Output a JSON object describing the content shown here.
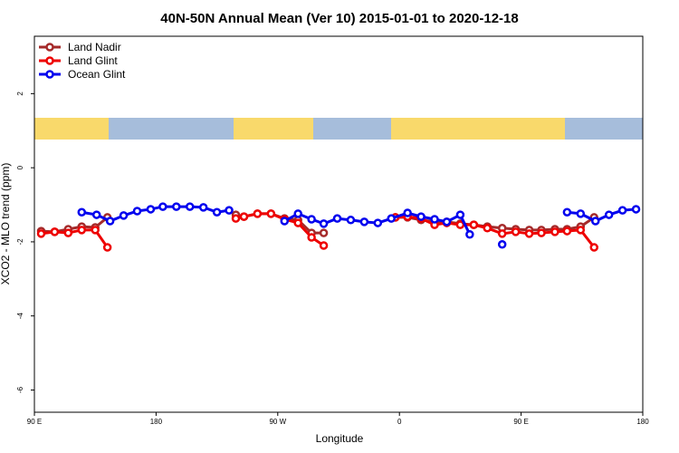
{
  "chart_data": {
    "type": "line",
    "title": "40N-50N Annual Mean (Ver 10)   2015-01-01 to 2020-12-18",
    "xlabel": "Longitude",
    "ylabel": "XCO2 - MLO trend (ppm)",
    "xlim": [
      90,
      540
    ],
    "ylim": [
      -6.6,
      3.55
    ],
    "xticks": [
      {
        "value": 90,
        "label": "90 E"
      },
      180,
      {
        "value": 270,
        "label": "90 W"
      },
      {
        "value": 360,
        "label": "0"
      },
      {
        "value": 450,
        "label": "90 E"
      },
      {
        "value": 540,
        "label": "180"
      }
    ],
    "yticks": [
      -6,
      -4,
      -2,
      0,
      2
    ],
    "legend": "top-left",
    "series": [
      {
        "name": "Land Nadir",
        "color": "#a52a2a",
        "x": [
          95,
          105,
          115,
          125,
          135,
          144,
          null,
          239,
          245,
          255,
          265,
          275,
          285,
          295,
          304,
          null,
          357,
          366,
          376,
          386,
          395,
          405,
          415,
          425,
          436,
          446,
          456,
          465,
          475,
          484,
          494,
          504
        ],
        "values": [
          -1.71,
          -1.73,
          -1.66,
          -1.59,
          -1.61,
          -1.34,
          null,
          -1.27,
          -1.32,
          -1.24,
          -1.24,
          -1.37,
          -1.41,
          -1.76,
          -1.76,
          null,
          -1.34,
          -1.34,
          -1.41,
          -1.46,
          -1.46,
          -1.51,
          -1.54,
          -1.59,
          -1.63,
          -1.66,
          -1.68,
          -1.68,
          -1.66,
          -1.66,
          -1.59,
          -1.34
        ]
      },
      {
        "name": "Land Glint",
        "color": "#ee0000",
        "x": [
          95,
          105,
          115,
          125,
          135,
          144,
          null,
          239,
          245,
          255,
          265,
          275,
          285,
          295,
          304,
          null,
          357,
          366,
          376,
          386,
          395,
          405,
          415,
          425,
          436,
          446,
          456,
          465,
          475,
          484,
          494,
          504
        ],
        "values": [
          -1.78,
          -1.73,
          -1.76,
          -1.68,
          -1.68,
          -2.15,
          null,
          -1.37,
          -1.32,
          -1.24,
          -1.24,
          -1.39,
          -1.49,
          -1.88,
          -2.1,
          null,
          -1.34,
          -1.32,
          -1.37,
          -1.54,
          -1.49,
          -1.54,
          -1.54,
          -1.63,
          -1.78,
          -1.73,
          -1.78,
          -1.76,
          -1.73,
          -1.71,
          -1.68,
          -2.15
        ]
      },
      {
        "name": "Ocean Glint",
        "color": "#0000ee",
        "x": [
          125,
          136,
          146,
          156,
          166,
          176,
          185,
          195,
          205,
          215,
          225,
          234,
          null,
          275,
          285,
          295,
          304,
          314,
          324,
          334,
          344,
          354,
          366,
          376,
          386,
          395,
          405,
          412,
          null,
          436,
          null,
          484,
          494,
          505,
          515,
          525,
          535
        ],
        "values": [
          -1.2,
          -1.27,
          -1.44,
          -1.29,
          -1.17,
          -1.12,
          -1.05,
          -1.05,
          -1.05,
          -1.07,
          -1.2,
          -1.15,
          null,
          -1.44,
          -1.24,
          -1.39,
          -1.51,
          -1.37,
          -1.41,
          -1.46,
          -1.49,
          -1.37,
          -1.22,
          -1.32,
          -1.39,
          -1.46,
          -1.27,
          -1.8,
          null,
          -2.07,
          null,
          -1.2,
          -1.24,
          -1.44,
          -1.27,
          -1.15,
          -1.12
        ]
      }
    ]
  }
}
